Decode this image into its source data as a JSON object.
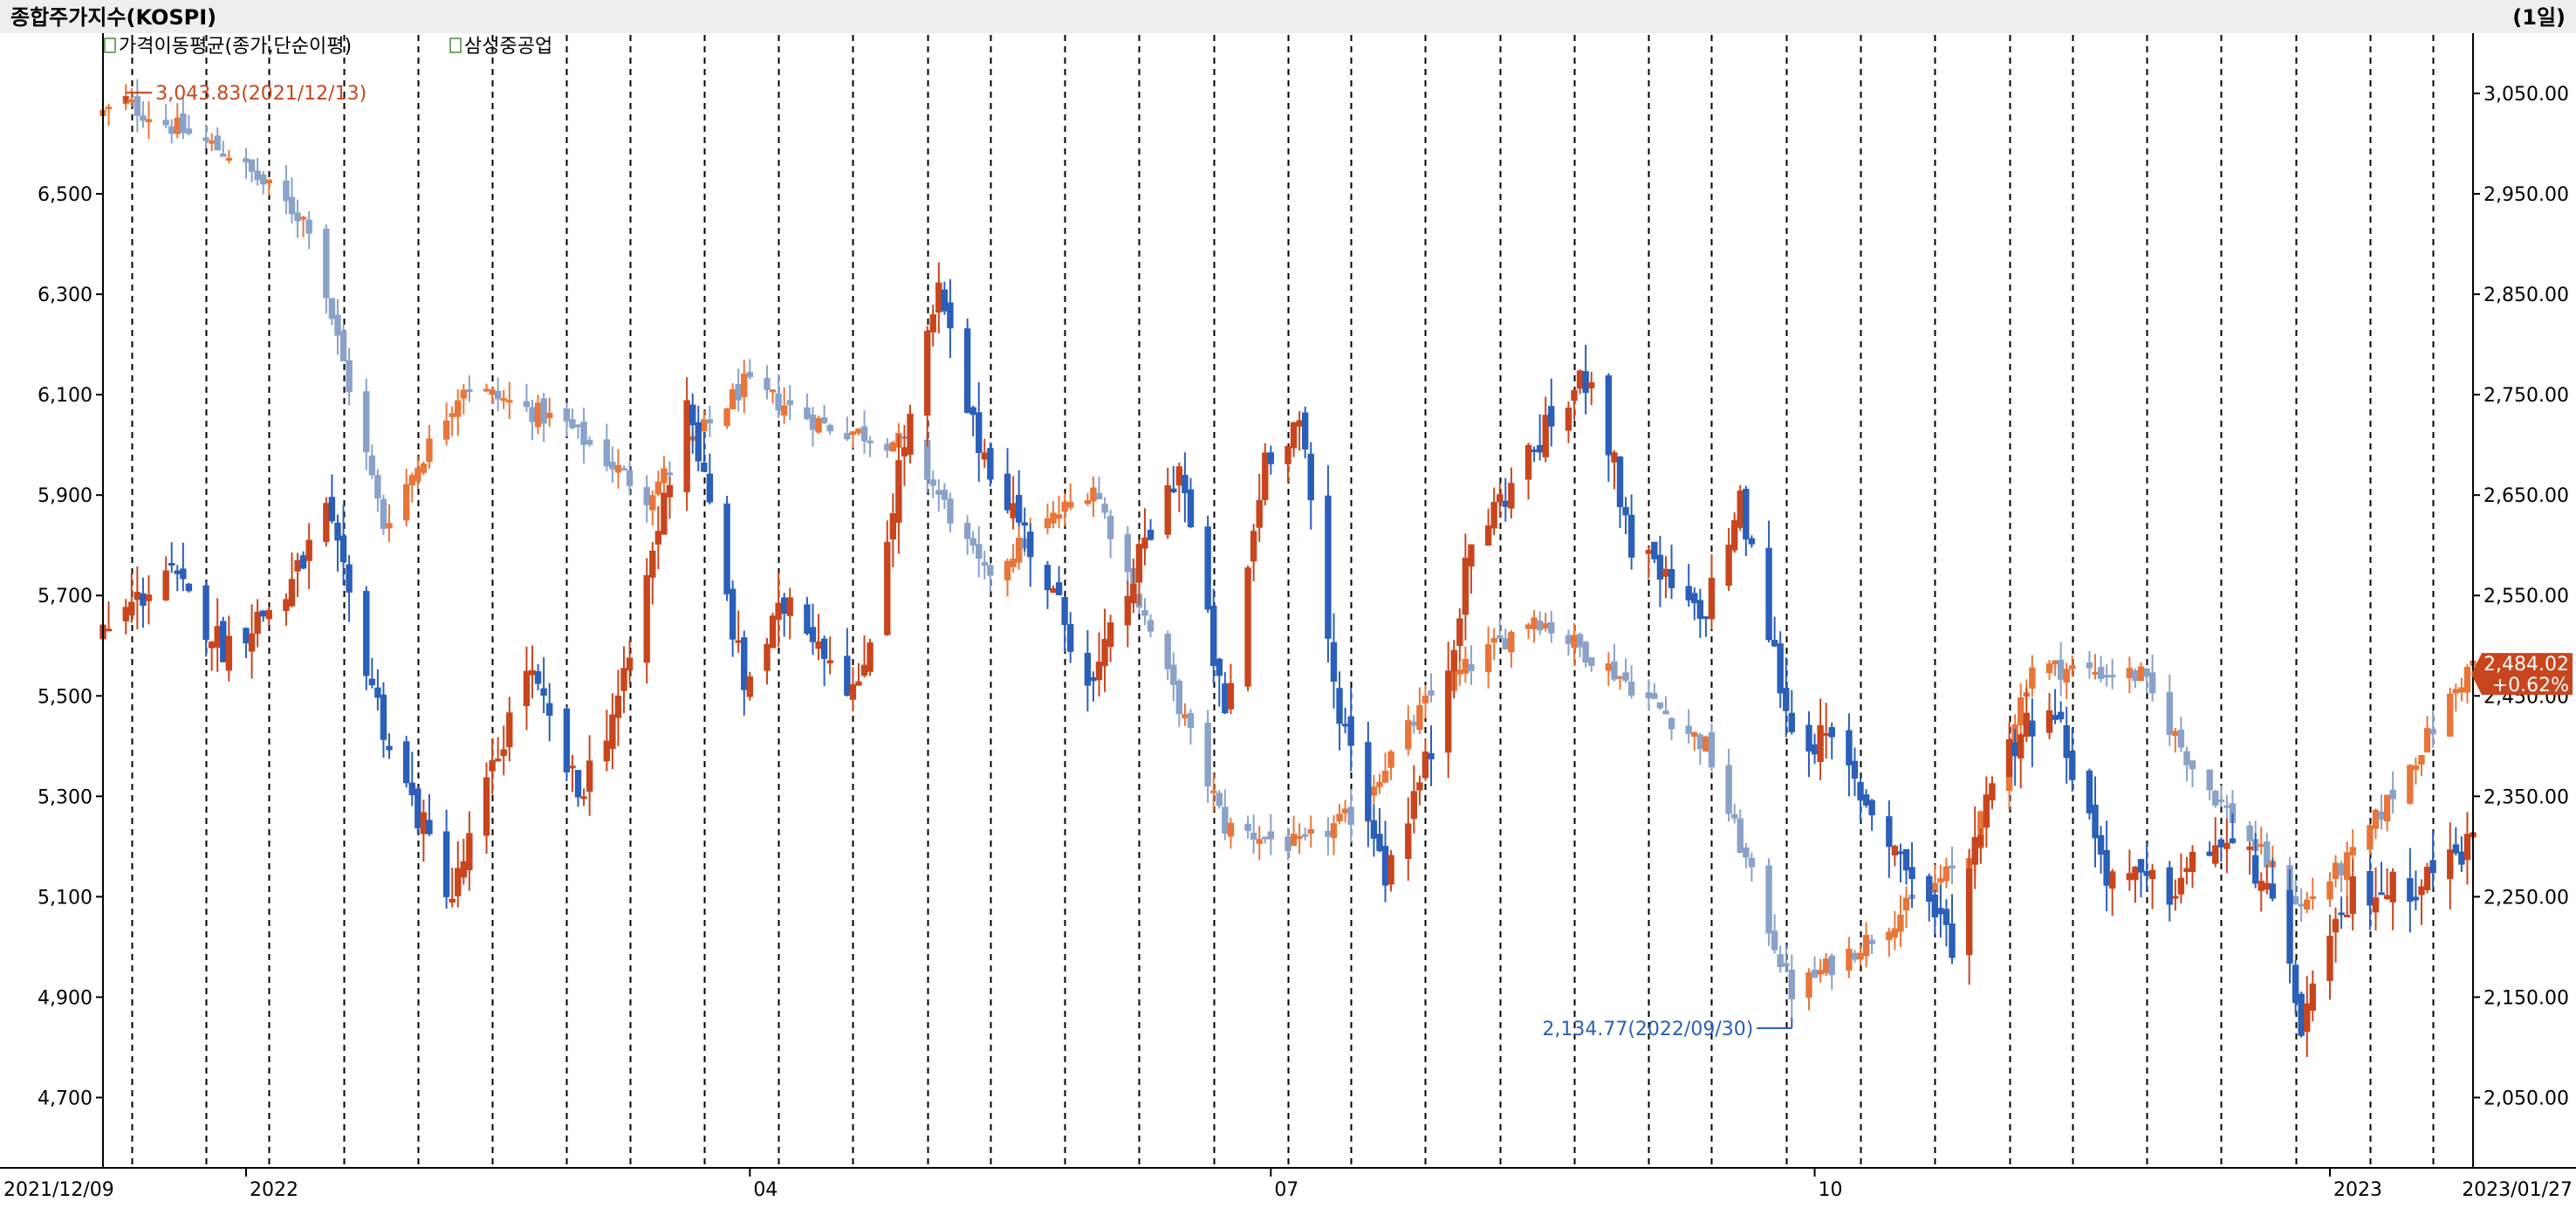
{
  "header": {
    "title": "종합주가지수(KOSPI)",
    "period": "(1일)"
  },
  "legend": {
    "items": [
      {
        "label": "가격이동평균(종가,단순이평)"
      },
      {
        "label": "삼성중공업"
      }
    ]
  },
  "colors": {
    "kospi_up": "#e8763a",
    "kospi_down": "#8aa2c8",
    "stock_up": "#c8461e",
    "stock_down": "#2b5fb8",
    "grid": "#000000",
    "axis": "#000000",
    "header_bg": "#eeeeee",
    "callout_high": "#c8461e",
    "callout_low": "#2b5fb8",
    "last_tag": "#c8461e"
  },
  "annotations": {
    "high": "3,043.83(2021/12/13)",
    "low": "2,134.77(2022/09/30)",
    "last_value": "2,484.02",
    "last_change": "+0.62%"
  },
  "chart_data": {
    "type": "candlestick",
    "x_range": [
      "2021/12/09",
      "2023/01/27"
    ],
    "x_tick_labels": [
      "2021/12/09",
      "2022",
      "04",
      "07",
      "10",
      "2023",
      "2023/01/27"
    ],
    "left_axis": {
      "series": "삼성중공업",
      "ticks": [
        "6,500",
        "6,300",
        "6,100",
        "5,900",
        "5,700",
        "5,500",
        "5,300",
        "5,100",
        "4,900",
        "4,700"
      ],
      "range": [
        4560,
        6820
      ]
    },
    "right_axis": {
      "series": "종합주가지수(KOSPI)",
      "ticks": [
        "3,050.00",
        "2,950.00",
        "2,850.00",
        "2,750.00",
        "2,650.00",
        "2,550.00",
        "2,450.00",
        "2,350.00",
        "2,250.00",
        "2,150.00",
        "2,050.00"
      ],
      "range": [
        1980,
        3110
      ]
    },
    "grid": "vertical dashed",
    "kospi_close_keypoints": [
      [
        "2021/12/09",
        3030
      ],
      [
        "2021/12/13",
        3040
      ],
      [
        "2021/12/31",
        2990
      ],
      [
        "2022/01/14",
        2920
      ],
      [
        "2022/01/27",
        2620
      ],
      [
        "2022/02/10",
        2760
      ],
      [
        "2022/02/28",
        2720
      ],
      [
        "2022/03/14",
        2650
      ],
      [
        "2022/03/31",
        2760
      ],
      [
        "2022/04/14",
        2720
      ],
      [
        "2022/04/29",
        2700
      ],
      [
        "2022/05/12",
        2570
      ],
      [
        "2022/05/31",
        2660
      ],
      [
        "2022/06/15",
        2440
      ],
      [
        "2022/06/23",
        2320
      ],
      [
        "2022/07/06",
        2300
      ],
      [
        "2022/07/15",
        2330
      ],
      [
        "2022/07/29",
        2450
      ],
      [
        "2022/08/16",
        2530
      ],
      [
        "2022/08/31",
        2470
      ],
      [
        "2022/09/15",
        2400
      ],
      [
        "2022/09/30",
        2155
      ],
      [
        "2022/10/14",
        2210
      ],
      [
        "2022/10/31",
        2290
      ],
      [
        "2022/11/11",
        2480
      ],
      [
        "2022/11/30",
        2470
      ],
      [
        "2022/12/09",
        2380
      ],
      [
        "2022/12/28",
        2240
      ],
      [
        "2023/01/06",
        2290
      ],
      [
        "2023/01/16",
        2380
      ],
      [
        "2023/01/27",
        2484.02
      ]
    ],
    "stock_close_keypoints": [
      [
        "2021/12/09",
        5620
      ],
      [
        "2021/12/20",
        5750
      ],
      [
        "2021/12/30",
        5600
      ],
      [
        "2022/01/10",
        5700
      ],
      [
        "2022/01/17",
        5860
      ],
      [
        "2022/01/28",
        5400
      ],
      [
        "2022/02/08",
        5100
      ],
      [
        "2022/02/21",
        5560
      ],
      [
        "2022/03/02",
        5300
      ],
      [
        "2022/03/10",
        5520
      ],
      [
        "2022/03/21",
        6100
      ],
      [
        "2022/03/31",
        5520
      ],
      [
        "2022/04/08",
        5700
      ],
      [
        "2022/04/20",
        5500
      ],
      [
        "2022/04/27",
        5950
      ],
      [
        "2022/05/04",
        6300
      ],
      [
        "2022/05/10",
        6030
      ],
      [
        "2022/05/18",
        5850
      ],
      [
        "2022/05/31",
        5520
      ],
      [
        "2022/06/09",
        5800
      ],
      [
        "2022/06/15",
        5960
      ],
      [
        "2022/06/23",
        5450
      ],
      [
        "2022/06/30",
        5980
      ],
      [
        "2022/07/06",
        6050
      ],
      [
        "2022/07/12",
        5520
      ],
      [
        "2022/07/21",
        5150
      ],
      [
        "2022/07/29",
        5390
      ],
      [
        "2022/08/05",
        5800
      ],
      [
        "2022/08/17",
        6010
      ],
      [
        "2022/08/26",
        6150
      ],
      [
        "2022/09/02",
        5800
      ],
      [
        "2022/09/14",
        5650
      ],
      [
        "2022/09/21",
        5880
      ],
      [
        "2022/09/30",
        5430
      ],
      [
        "2022/10/07",
        5400
      ],
      [
        "2022/10/19",
        5180
      ],
      [
        "2022/10/28",
        5010
      ],
      [
        "2022/11/04",
        5350
      ],
      [
        "2022/11/14",
        5500
      ],
      [
        "2022/11/24",
        5150
      ],
      [
        "2022/12/05",
        5110
      ],
      [
        "2022/12/13",
        5210
      ],
      [
        "2022/12/21",
        5150
      ],
      [
        "2022/12/28",
        4850
      ],
      [
        "2023/01/06",
        5110
      ],
      [
        "2023/01/16",
        5120
      ],
      [
        "2023/01/27",
        5210
      ]
    ]
  }
}
